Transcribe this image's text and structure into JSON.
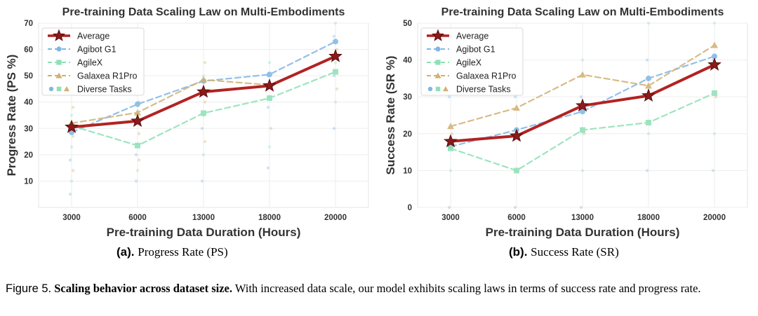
{
  "chart_data": [
    {
      "type": "line",
      "title": "Pre-training Data Scaling Law on Multi-Embodiments",
      "xlabel": "Pre-training Data Duration (Hours)",
      "ylabel": "Progress Rate (PS %)",
      "categories": [
        "3000",
        "6000",
        "13000",
        "18000",
        "20000"
      ],
      "ylim": [
        0,
        70
      ],
      "yticks": [
        10,
        20,
        30,
        40,
        50,
        60,
        70
      ],
      "grid": true,
      "legend_position": "top-left",
      "series": [
        {
          "name": "Average",
          "values": [
            30.5,
            32.8,
            43.9,
            46.2,
            57.4
          ],
          "color": "#b22222"
        },
        {
          "name": "Agibot G1",
          "values": [
            28.5,
            39.2,
            48.0,
            50.5,
            63.0
          ],
          "color": "#7fb6e6"
        },
        {
          "name": "AgileX",
          "values": [
            31.0,
            23.5,
            35.8,
            41.5,
            51.5
          ],
          "color": "#8ee0b6"
        },
        {
          "name": "Galaxea R1Pro",
          "values": [
            32.0,
            36.0,
            48.5,
            46.5,
            57.5
          ],
          "color": "#d2b070"
        }
      ],
      "diverse_tasks_label": "Diverse Tasks",
      "diverse_tasks": [
        [
          5,
          10,
          14,
          18,
          23,
          27,
          31,
          35,
          38
        ],
        [
          10,
          14,
          18,
          20,
          24,
          28,
          32,
          36,
          40
        ],
        [
          10,
          20,
          25,
          30,
          35,
          40,
          45,
          50,
          55
        ],
        [
          15,
          23,
          30,
          38,
          42,
          46,
          50,
          55
        ],
        [
          30,
          40,
          45,
          50,
          55,
          60,
          65,
          70
        ]
      ],
      "subcaption_label": "(a).",
      "subcaption_text": "Progress Rate (PS)"
    },
    {
      "type": "line",
      "title": "Pre-training Data Scaling Law on Multi-Embodiments",
      "xlabel": "Pre-training Data Duration (Hours)",
      "ylabel": "Success Rate (SR %)",
      "categories": [
        "3000",
        "6000",
        "13000",
        "18000",
        "20000"
      ],
      "ylim": [
        0,
        50
      ],
      "yticks": [
        0,
        10,
        20,
        30,
        40,
        50
      ],
      "grid": true,
      "legend_position": "top-left",
      "series": [
        {
          "name": "Average",
          "values": [
            17.9,
            19.4,
            27.6,
            30.3,
            38.7
          ],
          "color": "#b22222"
        },
        {
          "name": "Agibot G1",
          "values": [
            16.5,
            21.0,
            26.0,
            35.0,
            41.0
          ],
          "color": "#7fb6e6"
        },
        {
          "name": "AgileX",
          "values": [
            16.0,
            10.0,
            21.0,
            23.0,
            31.0
          ],
          "color": "#8ee0b6"
        },
        {
          "name": "Galaxea R1Pro",
          "values": [
            22.0,
            27.0,
            36.0,
            33.0,
            44.0
          ],
          "color": "#d2b070"
        }
      ],
      "diverse_tasks_label": "Diverse Tasks",
      "diverse_tasks": [
        [
          0,
          10,
          20,
          30
        ],
        [
          0,
          10,
          20,
          30
        ],
        [
          0,
          10,
          20,
          30,
          40
        ],
        [
          10,
          20,
          30,
          40,
          50
        ],
        [
          10,
          20,
          30,
          40,
          50
        ]
      ],
      "subcaption_label": "(b).",
      "subcaption_text": "Success Rate (SR)"
    }
  ],
  "caption": {
    "figure_label": "Figure 5.",
    "bold_text": "Scaling behavior across dataset size.",
    "body_text": "With increased data scale, our model exhibits scaling laws in terms of success rate and progress rate."
  }
}
